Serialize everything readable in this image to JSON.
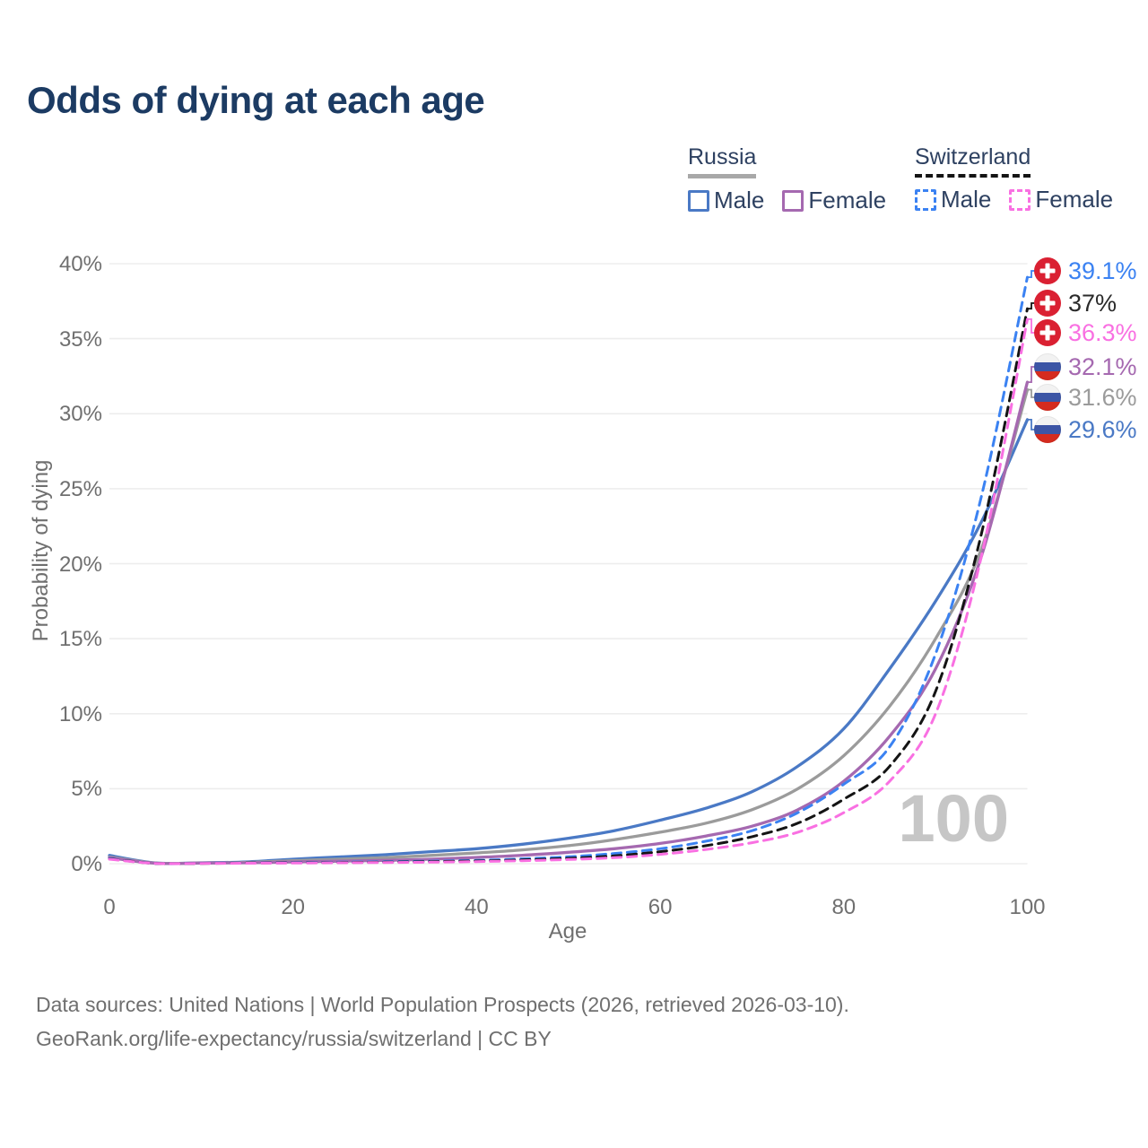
{
  "title": "Odds of dying at each age",
  "legend": {
    "groups": [
      {
        "label": "Russia",
        "line_style": "solid",
        "line_color": "#a8a8a8",
        "items": [
          {
            "label": "Male",
            "color": "#4a79c5",
            "style": "solid"
          },
          {
            "label": "Female",
            "color": "#a569b0",
            "style": "solid"
          }
        ]
      },
      {
        "label": "Switzerland",
        "line_style": "dashed",
        "line_color": "#141414",
        "items": [
          {
            "label": "Male",
            "color": "#3b82f2",
            "style": "dashed"
          },
          {
            "label": "Female",
            "color": "#f970e2",
            "style": "dashed"
          }
        ]
      }
    ]
  },
  "chart_data": {
    "type": "line",
    "title": "Odds of dying at each age",
    "xlabel": "Age",
    "ylabel": "Probability of dying",
    "xlim": [
      0,
      100
    ],
    "ylim": [
      0,
      40
    ],
    "grid": "horizontal",
    "x_tick_values": [
      0,
      20,
      40,
      60,
      80,
      100
    ],
    "x_tick_labels": [
      "0",
      "20",
      "40",
      "60",
      "80",
      "100"
    ],
    "y_tick_values": [
      0,
      5,
      10,
      15,
      20,
      25,
      30,
      35,
      40
    ],
    "y_tick_labels": [
      "0%",
      "5%",
      "10%",
      "15%",
      "20%",
      "25%",
      "30%",
      "35%",
      "40%"
    ],
    "watermark": "100",
    "x": [
      0,
      5,
      10,
      15,
      20,
      25,
      30,
      35,
      40,
      45,
      50,
      55,
      60,
      65,
      70,
      75,
      80,
      85,
      90,
      95,
      100
    ],
    "series": [
      {
        "name": "Russia Male",
        "country": "russia",
        "sex": "male",
        "style": "solid",
        "color": "#4a79c5",
        "label_color": "#4a79c5",
        "end_label": "29.6%",
        "values": [
          0.55,
          0.05,
          0.06,
          0.12,
          0.3,
          0.45,
          0.6,
          0.8,
          1.0,
          1.3,
          1.7,
          2.2,
          2.9,
          3.7,
          4.8,
          6.5,
          9.0,
          13.0,
          17.5,
          22.8,
          29.6
        ]
      },
      {
        "name": "Russia",
        "country": "russia",
        "sex": "both",
        "style": "solid",
        "color": "#9b9b9b",
        "label_color": "#9b9b9b",
        "end_label": "31.6%",
        "values": [
          0.45,
          0.04,
          0.05,
          0.09,
          0.2,
          0.3,
          0.4,
          0.55,
          0.72,
          0.92,
          1.2,
          1.6,
          2.1,
          2.7,
          3.6,
          5.0,
          7.2,
          10.5,
          15.0,
          21.0,
          31.6
        ]
      },
      {
        "name": "Russia Female",
        "country": "russia",
        "sex": "female",
        "style": "solid",
        "color": "#a569b0",
        "label_color": "#a569b0",
        "end_label": "32.1%",
        "values": [
          0.4,
          0.03,
          0.04,
          0.06,
          0.12,
          0.17,
          0.22,
          0.3,
          0.42,
          0.56,
          0.76,
          1.0,
          1.35,
          1.85,
          2.5,
          3.6,
          5.5,
          8.5,
          13.0,
          20.5,
          32.1
        ]
      },
      {
        "name": "Switzerland Male",
        "country": "switzerland",
        "sex": "male",
        "style": "dashed",
        "color": "#3b82f2",
        "label_color": "#3b82f2",
        "end_label": "39.1%",
        "values": [
          0.35,
          0.02,
          0.03,
          0.05,
          0.08,
          0.1,
          0.13,
          0.17,
          0.22,
          0.32,
          0.46,
          0.68,
          1.0,
          1.5,
          2.2,
          3.4,
          5.3,
          7.8,
          14.0,
          24.5,
          39.1
        ]
      },
      {
        "name": "Switzerland",
        "country": "switzerland",
        "sex": "both",
        "style": "dashed",
        "color": "#141414",
        "label_color": "#2a2a2a",
        "end_label": "37%",
        "values": [
          0.32,
          0.02,
          0.02,
          0.04,
          0.06,
          0.08,
          0.1,
          0.14,
          0.18,
          0.25,
          0.36,
          0.52,
          0.8,
          1.2,
          1.8,
          2.7,
          4.3,
          6.5,
          11.5,
          22.0,
          37.0
        ]
      },
      {
        "name": "Switzerland Female",
        "country": "switzerland",
        "sex": "female",
        "style": "dashed",
        "color": "#f970e2",
        "label_color": "#f970e2",
        "end_label": "36.3%",
        "values": [
          0.3,
          0.015,
          0.02,
          0.03,
          0.04,
          0.06,
          0.08,
          0.1,
          0.14,
          0.2,
          0.28,
          0.4,
          0.62,
          0.95,
          1.4,
          2.1,
          3.4,
          5.5,
          10.0,
          20.5,
          36.3
        ]
      }
    ]
  },
  "footer": {
    "line1": "Data sources: United Nations | World Population Prospects (2026, retrieved 2026-03-10).",
    "line2": "GeoRank.org/life-expectancy/russia/switzerland | CC BY"
  }
}
